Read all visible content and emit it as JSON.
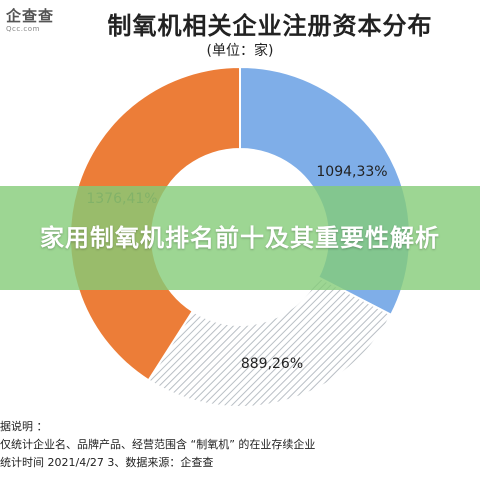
{
  "header": {
    "logo_main": "企查查",
    "logo_sub": "Qcc.com",
    "title": "制氧机相关企业注册资本分布",
    "unit": "(单位：家)"
  },
  "banner": {
    "text": "家用制氧机排名前十及其重要性解析"
  },
  "notes": {
    "line1": "据说明 ：",
    "line2": "仅统计企业名、品牌产品、经营范围含 “制氧机” 的在业存续企业",
    "line3": "统计时间  2021/4/27     3、数据来源：企查查"
  },
  "colors": {
    "blue": "#7faee8",
    "hatch": "#c5cbd0",
    "orange": "#ec7d38",
    "banner": "#84cc78"
  },
  "chart_data": {
    "type": "pie",
    "variant": "donut",
    "title": "制氧机相关企业注册资本分布",
    "subtitle": "(单位：家)",
    "slices": [
      {
        "value": 1094,
        "percent": 33,
        "label": "1094,33%",
        "color": "#7faee8",
        "pattern": "solid"
      },
      {
        "value": 889,
        "percent": 26,
        "label": "889,26%",
        "color": "#c5cbd0",
        "pattern": "hatched"
      },
      {
        "value": 1376,
        "percent": 41,
        "label": "1376,41%",
        "color": "#ec7d38",
        "pattern": "solid"
      }
    ]
  }
}
